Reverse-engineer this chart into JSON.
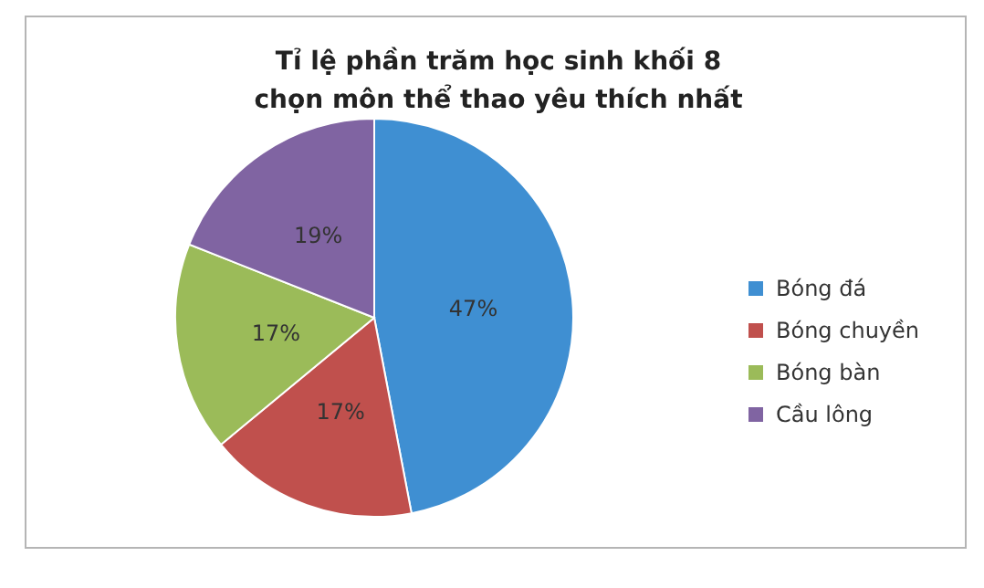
{
  "chart_data": {
    "type": "pie",
    "title": "Tỉ lệ phần trăm học sinh khối 8\nchọn môn thể thao yêu thích nhất",
    "categories": [
      "Bóng đá",
      "Bóng chuyền",
      "Bóng bàn",
      "Cầu lông"
    ],
    "values": [
      47,
      17,
      17,
      19
    ],
    "value_labels": [
      "47%",
      "17%",
      "17%",
      "19%"
    ],
    "colors": [
      "#3f8fd2",
      "#c0504d",
      "#9bbb59",
      "#8064a2"
    ],
    "legend": "right"
  }
}
